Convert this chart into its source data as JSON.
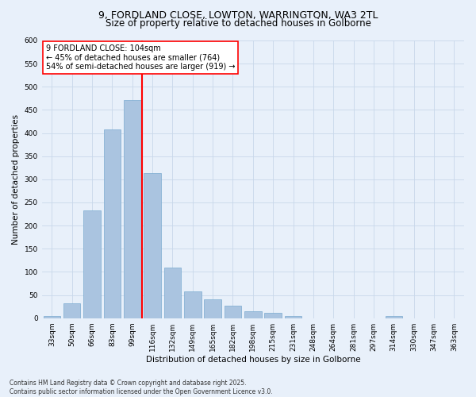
{
  "title_line1": "9, FORDLAND CLOSE, LOWTON, WARRINGTON, WA3 2TL",
  "title_line2": "Size of property relative to detached houses in Golborne",
  "xlabel": "Distribution of detached houses by size in Golborne",
  "ylabel": "Number of detached properties",
  "categories": [
    "33sqm",
    "50sqm",
    "66sqm",
    "83sqm",
    "99sqm",
    "116sqm",
    "132sqm",
    "149sqm",
    "165sqm",
    "182sqm",
    "198sqm",
    "215sqm",
    "231sqm",
    "248sqm",
    "264sqm",
    "281sqm",
    "297sqm",
    "314sqm",
    "330sqm",
    "347sqm",
    "363sqm"
  ],
  "values": [
    5,
    32,
    232,
    408,
    472,
    313,
    110,
    58,
    40,
    27,
    15,
    12,
    5,
    0,
    0,
    0,
    0,
    5,
    0,
    0,
    0
  ],
  "bar_color": "#aac4e0",
  "bar_edge_color": "#7aaad0",
  "grid_color": "#c8d8ea",
  "background_color": "#e8f0fa",
  "vline_color": "red",
  "vline_x_index": 4.5,
  "annotation_text": "9 FORDLAND CLOSE: 104sqm\n← 45% of detached houses are smaller (764)\n54% of semi-detached houses are larger (919) →",
  "annotation_box_color": "white",
  "annotation_box_edge": "red",
  "ylim": [
    0,
    600
  ],
  "yticks": [
    0,
    50,
    100,
    150,
    200,
    250,
    300,
    350,
    400,
    450,
    500,
    550,
    600
  ],
  "footer": "Contains HM Land Registry data © Crown copyright and database right 2025.\nContains public sector information licensed under the Open Government Licence v3.0.",
  "title_fontsize": 9,
  "subtitle_fontsize": 8.5,
  "axis_label_fontsize": 7.5,
  "tick_fontsize": 6.5,
  "annotation_fontsize": 7,
  "footer_fontsize": 5.5
}
